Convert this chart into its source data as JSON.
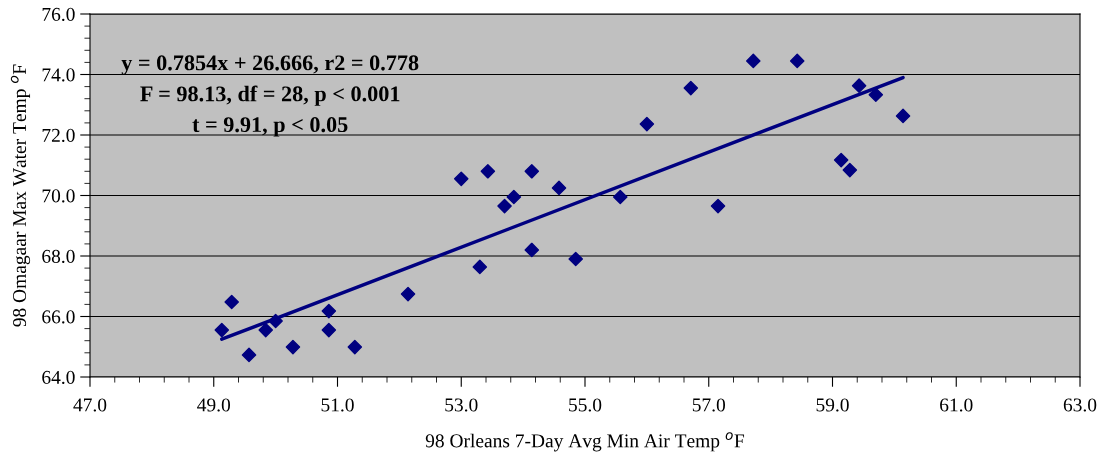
{
  "chart_data": {
    "type": "scatter",
    "xlabel": "98 Orleans 7-Day Avg Min Air Temp $^{o}$F",
    "ylabel": "98 Omagaar Max Water Temp $^{o}$F",
    "xlim": [
      47,
      63
    ],
    "xticks": [
      {
        "value": 47,
        "label": "47.0"
      },
      {
        "value": 49,
        "label": "49.0"
      },
      {
        "value": 51,
        "label": "51.0"
      },
      {
        "value": 53,
        "label": "53.0"
      },
      {
        "value": 55,
        "label": "55.0"
      },
      {
        "value": 57,
        "label": "57.0"
      },
      {
        "value": 59,
        "label": "59.0"
      },
      {
        "value": 61,
        "label": "61.0"
      },
      {
        "value": 63,
        "label": "63.0"
      }
    ],
    "ylim": [
      64,
      76
    ],
    "yticks": [
      {
        "value": 64,
        "label": "64.0"
      },
      {
        "value": 66,
        "label": "66.0"
      },
      {
        "value": 68,
        "label": "68.0"
      },
      {
        "value": 70,
        "label": "70.0"
      },
      {
        "value": 72,
        "label": "72.0"
      },
      {
        "value": 74,
        "label": "74.0"
      },
      {
        "value": 76,
        "label": "76.0"
      }
    ],
    "grid": "y",
    "series": [
      {
        "marker": "diamond",
        "color": "#000080",
        "x": [
          49.13,
          49.29,
          49.57,
          49.84,
          50.0,
          50.28,
          50.86,
          50.86,
          51.28,
          52.14,
          53.0,
          53.3,
          53.43,
          53.7,
          53.85,
          54.14,
          54.14,
          54.58,
          54.85,
          55.57,
          56.0,
          56.71,
          57.15,
          57.72,
          58.43,
          59.14,
          59.28,
          59.43,
          59.7,
          60.14
        ],
        "values": [
          65.55,
          66.48,
          64.73,
          65.55,
          65.85,
          64.99,
          66.18,
          65.55,
          64.99,
          66.74,
          70.55,
          67.64,
          70.8,
          69.65,
          69.95,
          70.8,
          68.2,
          70.25,
          67.9,
          69.95,
          72.36,
          73.55,
          69.65,
          74.45,
          74.45,
          71.17,
          70.84,
          73.63,
          73.33,
          72.63
        ]
      },
      {
        "type": "line",
        "color": "#000080",
        "x": [
          49.13,
          60.14
        ],
        "values": [
          65.25,
          73.9
        ]
      }
    ],
    "annotations": [
      "y = 0.7854x + 26.666, r2 = 0.778",
      "F = 98.13, df = 28, p < 0.001",
      "t = 9.91, p < 0.05"
    ]
  }
}
